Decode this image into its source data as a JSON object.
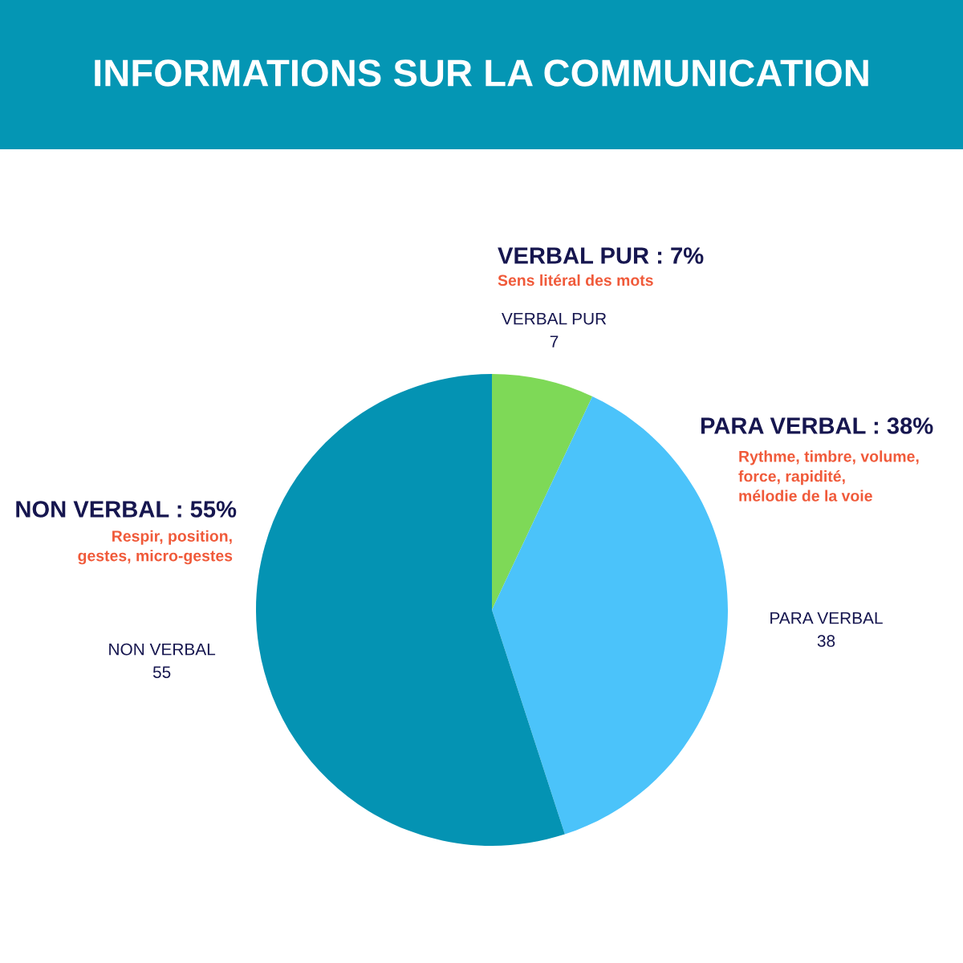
{
  "chart_data": {
    "type": "pie",
    "title": "INFORMATIONS SUR LA COMMUNICATION",
    "categories": [
      "VERBAL PUR",
      "PARA VERBAL",
      "NON VERBAL"
    ],
    "values": [
      7,
      38,
      55
    ],
    "colors": [
      "#7ed957",
      "#4bc3fa",
      "#0493b3"
    ],
    "data_labels": true,
    "annotations": [
      "VERBAL PUR : 7%",
      "Sens litéral des mots",
      "PARA VERBAL : 38%",
      "Rythme, timbre, volume,\nforce, rapidité,\nmélodie de la voie",
      "NON VERBAL : 55%",
      "Respir, position,\ngestes, micro-gestes"
    ]
  }
}
